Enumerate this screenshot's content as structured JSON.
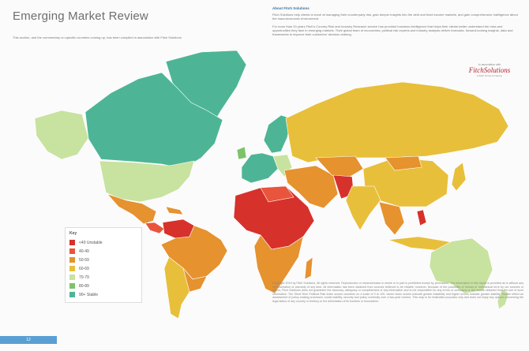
{
  "page": {
    "title": "Emerging Market Review",
    "intro": "This section, and the commentary on specific countries coming up, has been compiled in association with Fitch Solutions.",
    "page_number": "12"
  },
  "sidebar": {
    "heading": "About Fitch Solutions",
    "paragraphs": [
      "Fitch Solutions help clients to excel at managing their counterparty risk, gain deeper insights into the debt and fixed income markets, and gain comprehensive intelligence about the macroeconomic environment.",
      "For more than 20 years Fitch's Country Risk and Industry Research service has provided business intelligence that helps their clients better understand the risks and opportunities they face in emerging markets. Their global team of economists, political risk experts and industry analysts deliver forecasts, forward-looking insights, data and frameworks to improve their customers' decision-making."
    ]
  },
  "logo": {
    "caption": "In association with",
    "name": "FitchSolutions",
    "tagline": "A Fitch Group Company"
  },
  "legend": {
    "title": "Key",
    "items": [
      {
        "label": "<40 Unstable",
        "color": "#d7312b"
      },
      {
        "label": "40-49",
        "color": "#e8543c"
      },
      {
        "label": "50-59",
        "color": "#e5922f"
      },
      {
        "label": "60-69",
        "color": "#e8bf3b"
      },
      {
        "label": "70-79",
        "color": "#c8e2a0"
      },
      {
        "label": "80-89",
        "color": "#7cc36a"
      },
      {
        "label": "90+ Stable",
        "color": "#4db596"
      }
    ]
  },
  "footnote": "Copyright 2019 by Fitch Solutions. All rights reserved. Reproduction or retransmission in whole or in part is prohibited except by permission. The information in this report is provided as is without any representation or warranty of any kind. All information has been obtained from sources believed to be reliable; however, because of the possibility of human or mechanical error by our sources or others, Fitch Solutions does not guarantee the accuracy, adequacy or completeness of any information and is not responsible for any errors or omissions or the results obtained from the use of such information. The Short-Term Political Risk Index scores countries on a scale of 0 to 100, where lower scores indicate greater instability and higher scores indicate greater stability. Scores reflect an assessment of policy-making processes, social stability, security and policy continuity over a two-year horizon. This map is for illustrative purposes only and does not imply any opinion concerning the legal status of any country or territory or the delimitation of its frontiers or boundaries."
}
